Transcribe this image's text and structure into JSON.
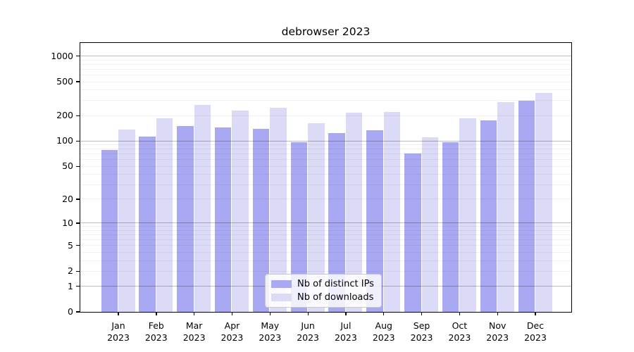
{
  "title": "debrowser 2023",
  "chart_data": {
    "type": "bar",
    "title": "debrowser 2023",
    "scale": "log1p",
    "categories": [
      "Jan",
      "Feb",
      "Mar",
      "Apr",
      "May",
      "Jun",
      "Jul",
      "Aug",
      "Sep",
      "Oct",
      "Nov",
      "Dec"
    ],
    "year_label": "2023",
    "series": [
      {
        "name": "Nb of distinct IPs",
        "color": "#a9a9f3",
        "values": [
          78,
          113,
          150,
          144,
          140,
          96,
          124,
          135,
          71,
          96,
          176,
          299
        ]
      },
      {
        "name": "Nb of downloads",
        "color": "#dbdbf7",
        "values": [
          137,
          184,
          268,
          230,
          247,
          163,
          215,
          219,
          110,
          186,
          289,
          372
        ]
      }
    ],
    "yticks": [
      0,
      1,
      2,
      5,
      10,
      20,
      50,
      100,
      200,
      500,
      1000
    ],
    "ylim": [
      0,
      1400
    ],
    "grid": true,
    "legend_position": "lower center",
    "colors": {
      "major_grid": "#bdbdbd",
      "minor_grid": "#f0f0f0",
      "axis": "#000000",
      "background": "#ffffff"
    }
  }
}
